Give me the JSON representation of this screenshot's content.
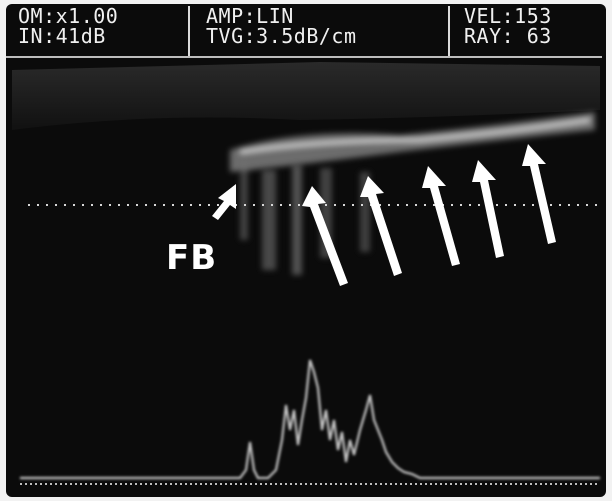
{
  "header": {
    "left_line1": "OM:x1.00",
    "left_line2": "IN:41dB",
    "center_line1": "AMP:LIN",
    "center_line2": "TVG:3.5dB/cm",
    "right_line1": "VEL:153",
    "right_line2": "RAY: 63"
  },
  "annotation": {
    "label": "FB",
    "arrow_count": 5
  },
  "colors": {
    "screen": "#0b0b0b",
    "text": "#f0f0f0",
    "echo": "#bcbcbc"
  }
}
